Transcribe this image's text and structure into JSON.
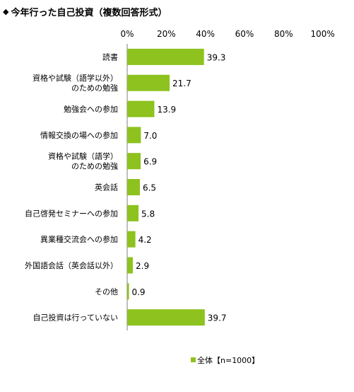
{
  "title": {
    "marker": "◆",
    "text": "今年行った自己投資",
    "note": "（複数回答形式）"
  },
  "colors": {
    "bar": "#8dc21f",
    "axis": "#7f7f7f",
    "grid": "#bfbfbf",
    "text": "#000000"
  },
  "chart_data": {
    "type": "bar",
    "orientation": "horizontal",
    "title": "今年行った自己投資（複数回答形式）",
    "categories": [
      [
        "読書"
      ],
      [
        "資格や試験（語学以外）",
        "のための勉強"
      ],
      [
        "勉強会への参加"
      ],
      [
        "情報交換の場への参加"
      ],
      [
        "資格や試験（語学）",
        "のための勉強"
      ],
      [
        "英会話"
      ],
      [
        "自己啓発セミナーへの参加"
      ],
      [
        "異業種交流会への参加"
      ],
      [
        "外国語会話（英会話以外）"
      ],
      [
        "その他"
      ],
      [
        "自己投資は行っていない"
      ]
    ],
    "series": [
      {
        "name": "全体【n=1000】",
        "values": [
          39.3,
          21.7,
          13.9,
          7.0,
          6.9,
          6.5,
          5.8,
          4.2,
          2.9,
          0.9,
          39.7
        ],
        "labels": [
          "39.3",
          "21.7",
          "13.9",
          "7.0",
          "6.9",
          "6.5",
          "5.8",
          "4.2",
          "2.9",
          "0.9",
          "39.7"
        ]
      }
    ],
    "xlim": [
      0,
      100
    ],
    "ticks": [
      "0%",
      "20%",
      "40%",
      "60%",
      "80%",
      "100%"
    ],
    "tick_values": [
      0,
      20,
      40,
      60,
      80,
      100
    ],
    "grid": false,
    "legend_position": "bottom-right"
  }
}
